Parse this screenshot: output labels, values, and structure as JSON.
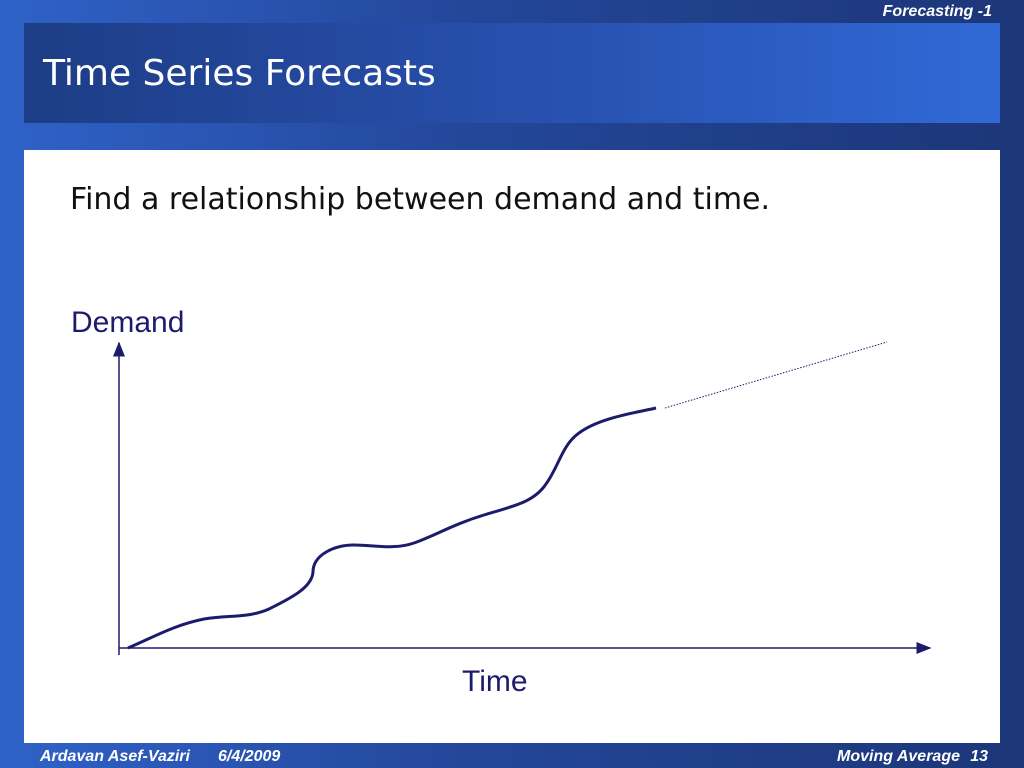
{
  "header": {
    "section": "Forecasting -1",
    "title": "Time Series Forecasts"
  },
  "body": {
    "text": "Find a relationship between demand and time.",
    "diagram": {
      "y_label": "Demand",
      "x_label": "Time"
    }
  },
  "footer": {
    "author": "Ardavan Asef-Vaziri",
    "date": "6/4/2009",
    "topic": "Moving Average",
    "page": "13"
  }
}
